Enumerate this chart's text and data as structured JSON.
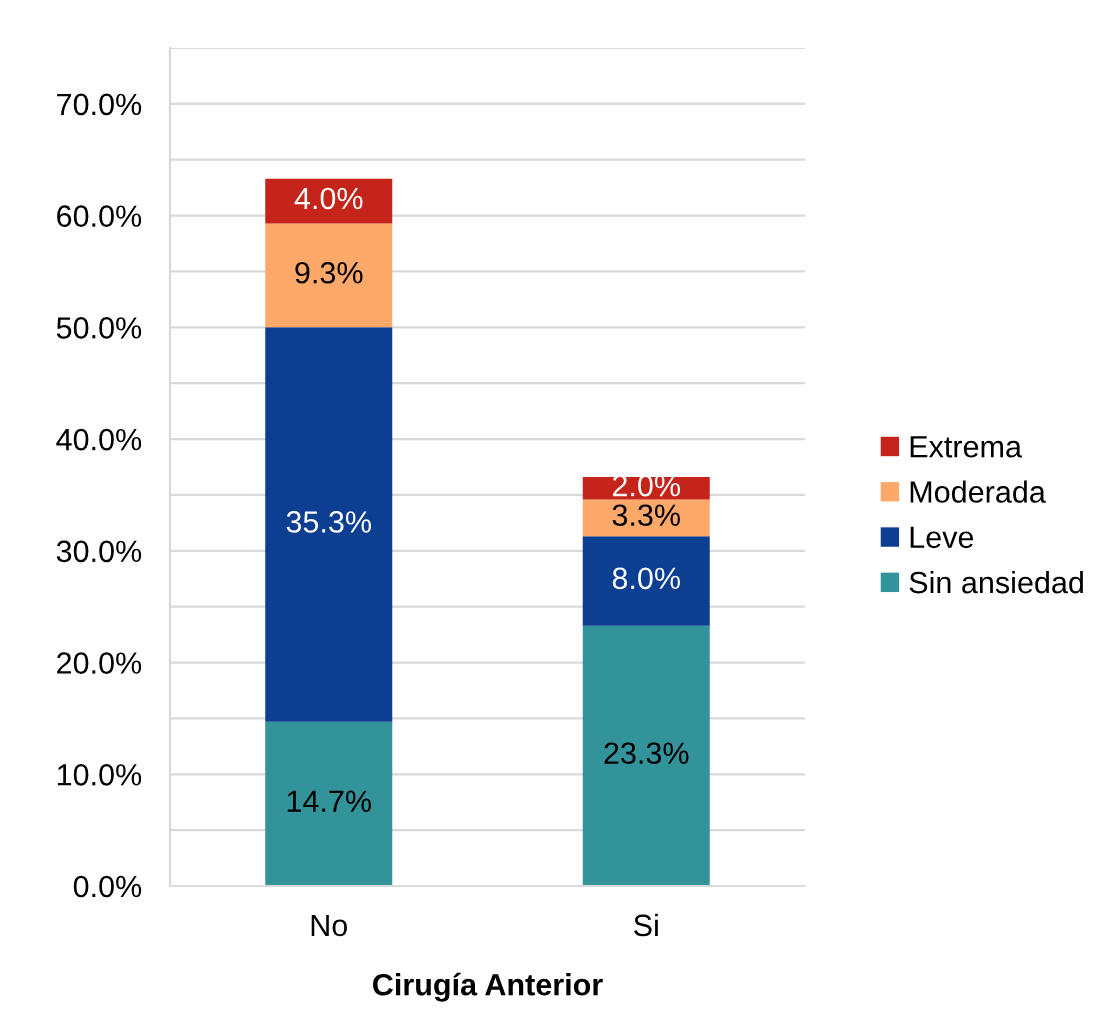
{
  "chart_data": {
    "type": "bar",
    "stacked": true,
    "categories": [
      "No",
      "Si"
    ],
    "xlabel": "Cirugía Anterior",
    "series": [
      {
        "name": "Sin ansiedad",
        "color": "#33939a",
        "values": [
          14.7,
          23.3
        ],
        "value_labels": [
          "14.7%",
          "23.3%"
        ]
      },
      {
        "name": "Leve",
        "color": "#0c3e91",
        "values": [
          35.3,
          8.0
        ],
        "value_labels": [
          "35.3%",
          "8.0%"
        ]
      },
      {
        "name": "Moderada",
        "color": "#fea96a",
        "values": [
          9.3,
          3.3
        ],
        "value_labels": [
          "9.3%",
          "3.3%"
        ]
      },
      {
        "name": "Extrema",
        "color": "#c5241a",
        "values": [
          4.0,
          2.0
        ],
        "value_labels": [
          "4.0%",
          "2.0%"
        ]
      }
    ],
    "ylim": [
      0,
      75
    ],
    "yticks": [
      {
        "value": 0,
        "label": "0.0%"
      },
      {
        "value": 5,
        "label": null
      },
      {
        "value": 10,
        "label": "10.0%"
      },
      {
        "value": 15,
        "label": null
      },
      {
        "value": 20,
        "label": "20.0%"
      },
      {
        "value": 25,
        "label": null
      },
      {
        "value": 30,
        "label": "30.0%"
      },
      {
        "value": 35,
        "label": null
      },
      {
        "value": 40,
        "label": "40.0%"
      },
      {
        "value": 45,
        "label": null
      },
      {
        "value": 50,
        "label": "50.0%"
      },
      {
        "value": 55,
        "label": null
      },
      {
        "value": 60,
        "label": "60.0%"
      },
      {
        "value": 65,
        "label": null
      },
      {
        "value": 70,
        "label": "70.0%"
      },
      {
        "value": 75,
        "label": null
      }
    ],
    "grid": "y",
    "legend": "right"
  }
}
